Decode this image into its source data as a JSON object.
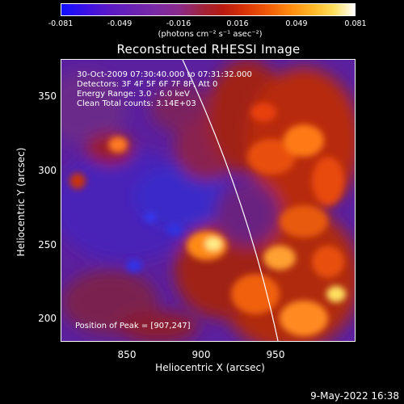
{
  "colorbar": {
    "ticks": [
      "-0.081",
      "-0.049",
      "-0.016",
      "0.016",
      "0.049",
      "0.081"
    ],
    "units": "(photons cm⁻² s⁻¹ asec⁻²)"
  },
  "title": "Reconstructed RHESSI Image",
  "info": {
    "time": "30-Oct-2009 07:30:40.000 to 07:31:32.000",
    "detectors": "Detectors: 3F 4F 5F 6F 7F 8F, Att 0",
    "energy": "Energy Range: 3.0 - 6.0 keV",
    "clean": "Clean    Total counts: 3.14E+03"
  },
  "peak": "Position of Peak = [907,247]",
  "axes": {
    "xlabel": "Heliocentric X (arcsec)",
    "ylabel": "Heliocentric Y (arcsec)",
    "xticks": [
      "850",
      "900",
      "950"
    ],
    "yticks": [
      "350",
      "300",
      "250",
      "200"
    ]
  },
  "footer": {
    "date": "9-May-2022 16:38"
  }
}
